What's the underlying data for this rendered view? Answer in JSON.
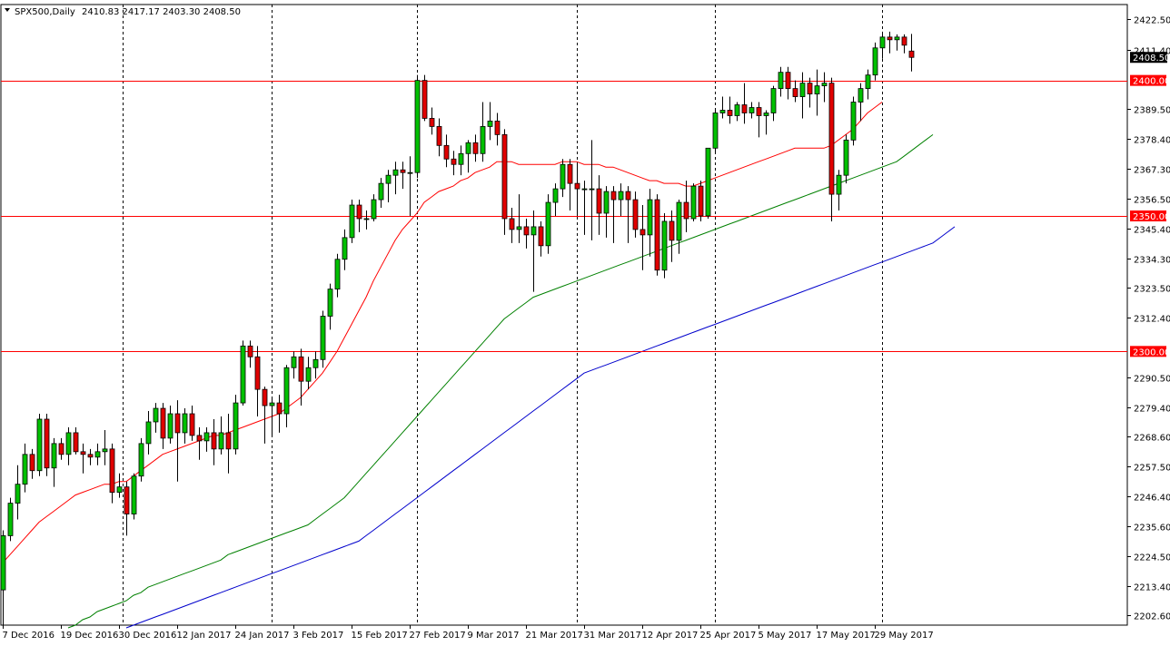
{
  "header": {
    "symbol": "SPX500,Daily",
    "ohlc": "2410.83 2417.17 2403.30 2408.50"
  },
  "colors": {
    "bull": "#00c000",
    "bear": "#e00000",
    "wick": "#000000",
    "level_line": "#ff0000",
    "ma_fast": "#ff0000",
    "ma_mid": "#008000",
    "ma_slow": "#0000cc",
    "price_tag_bg": "#000000"
  },
  "icons": {
    "symbol_marker": "triangle-down-icon"
  },
  "chart_data": {
    "type": "candlestick",
    "title": "SPX500,Daily",
    "ylim": [
      2199.0,
      2428.0
    ],
    "y_ticks": [
      {
        "value": 2422.5,
        "label": "2422.50"
      },
      {
        "value": 2411.4,
        "label": "2411.40"
      },
      {
        "value": 2389.5,
        "label": "2389.50"
      },
      {
        "value": 2378.4,
        "label": "2378.40"
      },
      {
        "value": 2367.3,
        "label": "2367.30"
      },
      {
        "value": 2356.5,
        "label": "2356.50"
      },
      {
        "value": 2345.4,
        "label": "2345.40"
      },
      {
        "value": 2334.3,
        "label": "2334.30"
      },
      {
        "value": 2323.5,
        "label": "2323.50"
      },
      {
        "value": 2312.4,
        "label": "2312.40"
      },
      {
        "value": 2290.5,
        "label": "2290.50"
      },
      {
        "value": 2279.4,
        "label": "2279.40"
      },
      {
        "value": 2268.6,
        "label": "2268.60"
      },
      {
        "value": 2257.5,
        "label": "2257.50"
      },
      {
        "value": 2246.4,
        "label": "2246.40"
      },
      {
        "value": 2235.6,
        "label": "2235.60"
      },
      {
        "value": 2224.5,
        "label": "2224.50"
      },
      {
        "value": 2213.4,
        "label": "2213.40"
      },
      {
        "value": 2202.6,
        "label": "2202.60"
      }
    ],
    "levels": [
      {
        "value": 2400.0,
        "label": "2400.00"
      },
      {
        "value": 2350.0,
        "label": "2350.00"
      },
      {
        "value": 2300.0,
        "label": "2300.00"
      }
    ],
    "current_price": {
      "value": 2408.5,
      "label": "2408.50"
    },
    "x_labels": [
      {
        "index": 0,
        "label": "7 Dec 2016"
      },
      {
        "index": 8,
        "label": "19 Dec 2016"
      },
      {
        "index": 16,
        "label": "30 Dec 2016"
      },
      {
        "index": 24,
        "label": "12 Jan 2017"
      },
      {
        "index": 32,
        "label": "24 Jan 2017"
      },
      {
        "index": 40,
        "label": "3 Feb 2017"
      },
      {
        "index": 48,
        "label": "15 Feb 2017"
      },
      {
        "index": 56,
        "label": "27 Feb 2017"
      },
      {
        "index": 64,
        "label": "9 Mar 2017"
      },
      {
        "index": 72,
        "label": "21 Mar 2017"
      },
      {
        "index": 80,
        "label": "31 Mar 2017"
      },
      {
        "index": 88,
        "label": "12 Apr 2017"
      },
      {
        "index": 96,
        "label": "25 Apr 2017"
      },
      {
        "index": 104,
        "label": "5 May 2017"
      },
      {
        "index": 112,
        "label": "17 May 2017"
      },
      {
        "index": 120,
        "label": "29 May 2017"
      }
    ],
    "separator_indices": [
      16.5,
      37,
      57,
      79,
      98,
      121
    ],
    "candles": [
      [
        2212,
        2234,
        2198,
        2232
      ],
      [
        2232,
        2246,
        2230,
        2244
      ],
      [
        2244,
        2258,
        2238,
        2251
      ],
      [
        2251,
        2266,
        2248,
        2262
      ],
      [
        2262,
        2264,
        2253,
        2256
      ],
      [
        2256,
        2277,
        2254,
        2275
      ],
      [
        2275,
        2277,
        2254,
        2257
      ],
      [
        2257,
        2268,
        2250,
        2266
      ],
      [
        2266,
        2268,
        2260,
        2262
      ],
      [
        2262,
        2272,
        2258,
        2270
      ],
      [
        2270,
        2272,
        2262,
        2263
      ],
      [
        2263,
        2266,
        2255,
        2262
      ],
      [
        2262,
        2264,
        2258,
        2261
      ],
      [
        2261,
        2266,
        2258,
        2263
      ],
      [
        2263,
        2271,
        2258,
        2264
      ],
      [
        2264,
        2266,
        2244,
        2248
      ],
      [
        2248,
        2255,
        2246,
        2250
      ],
      [
        2250,
        2252,
        2232,
        2240
      ],
      [
        2240,
        2255,
        2238,
        2254
      ],
      [
        2254,
        2268,
        2252,
        2266
      ],
      [
        2266,
        2278,
        2262,
        2274
      ],
      [
        2274,
        2281,
        2270,
        2279
      ],
      [
        2279,
        2281,
        2264,
        2268
      ],
      [
        2268,
        2280,
        2266,
        2277
      ],
      [
        2277,
        2282,
        2252,
        2270
      ],
      [
        2270,
        2279,
        2266,
        2277
      ],
      [
        2277,
        2280,
        2267,
        2269
      ],
      [
        2269,
        2272,
        2260,
        2267
      ],
      [
        2267,
        2272,
        2263,
        2270
      ],
      [
        2270,
        2275,
        2258,
        2264
      ],
      [
        2264,
        2276,
        2262,
        2270
      ],
      [
        2270,
        2277,
        2255,
        2264
      ],
      [
        2264,
        2284,
        2262,
        2281
      ],
      [
        2281,
        2304,
        2280,
        2302
      ],
      [
        2302,
        2304,
        2294,
        2298
      ],
      [
        2298,
        2302,
        2276,
        2286
      ],
      [
        2286,
        2287,
        2266,
        2280
      ],
      [
        2280,
        2283,
        2269,
        2281
      ],
      [
        2281,
        2284,
        2270,
        2277
      ],
      [
        2277,
        2295,
        2272,
        2294
      ],
      [
        2294,
        2300,
        2290,
        2298
      ],
      [
        2298,
        2301,
        2280,
        2289
      ],
      [
        2289,
        2298,
        2286,
        2294
      ],
      [
        2294,
        2300,
        2290,
        2297
      ],
      [
        2297,
        2315,
        2294,
        2313
      ],
      [
        2313,
        2325,
        2308,
        2323
      ],
      [
        2323,
        2336,
        2320,
        2334
      ],
      [
        2334,
        2345,
        2330,
        2342
      ],
      [
        2342,
        2356,
        2340,
        2354
      ],
      [
        2354,
        2356,
        2344,
        2349
      ],
      [
        2349,
        2352,
        2345,
        2349
      ],
      [
        2349,
        2358,
        2348,
        2356
      ],
      [
        2356,
        2364,
        2353,
        2362
      ],
      [
        2362,
        2367,
        2355,
        2365
      ],
      [
        2365,
        2370,
        2358,
        2367
      ],
      [
        2367,
        2370,
        2360,
        2366
      ],
      [
        2366,
        2372,
        2350,
        2366
      ],
      [
        2366,
        2402,
        2364,
        2400
      ],
      [
        2400,
        2402,
        2385,
        2386
      ],
      [
        2386,
        2390,
        2380,
        2383
      ],
      [
        2383,
        2386,
        2372,
        2376
      ],
      [
        2376,
        2380,
        2368,
        2371
      ],
      [
        2371,
        2374,
        2365,
        2369
      ],
      [
        2369,
        2376,
        2365,
        2373
      ],
      [
        2373,
        2378,
        2366,
        2377
      ],
      [
        2377,
        2380,
        2370,
        2373
      ],
      [
        2373,
        2392,
        2370,
        2383
      ],
      [
        2383,
        2392,
        2378,
        2385
      ],
      [
        2385,
        2388,
        2376,
        2380
      ],
      [
        2380,
        2382,
        2343,
        2349
      ],
      [
        2349,
        2353,
        2340,
        2345
      ],
      [
        2345,
        2358,
        2340,
        2346
      ],
      [
        2346,
        2349,
        2338,
        2343
      ],
      [
        2343,
        2352,
        2322,
        2346
      ],
      [
        2346,
        2348,
        2335,
        2339
      ],
      [
        2339,
        2358,
        2336,
        2355
      ],
      [
        2355,
        2362,
        2350,
        2360
      ],
      [
        2360,
        2371,
        2357,
        2369
      ],
      [
        2369,
        2371,
        2352,
        2362
      ],
      [
        2362,
        2369,
        2350,
        2360
      ],
      [
        2360,
        2363,
        2343,
        2360
      ],
      [
        2360,
        2378,
        2341,
        2360
      ],
      [
        2360,
        2365,
        2343,
        2351
      ],
      [
        2351,
        2361,
        2342,
        2359
      ],
      [
        2359,
        2361,
        2340,
        2356
      ],
      [
        2356,
        2362,
        2350,
        2359
      ],
      [
        2359,
        2361,
        2340,
        2356
      ],
      [
        2356,
        2359,
        2342,
        2345
      ],
      [
        2345,
        2354,
        2330,
        2343
      ],
      [
        2343,
        2360,
        2335,
        2356
      ],
      [
        2356,
        2358,
        2328,
        2330
      ],
      [
        2330,
        2351,
        2327,
        2348
      ],
      [
        2348,
        2352,
        2333,
        2341
      ],
      [
        2341,
        2356,
        2336,
        2355
      ],
      [
        2355,
        2363,
        2344,
        2349
      ],
      [
        2349,
        2362,
        2348,
        2361
      ],
      [
        2361,
        2363,
        2348,
        2350
      ],
      [
        2350,
        2375,
        2349,
        2375
      ],
      [
        2375,
        2389,
        2373,
        2388
      ],
      [
        2388,
        2394,
        2386,
        2389
      ],
      [
        2389,
        2394,
        2384,
        2387
      ],
      [
        2387,
        2392,
        2385,
        2391
      ],
      [
        2391,
        2399,
        2384,
        2388
      ],
      [
        2388,
        2392,
        2386,
        2390
      ],
      [
        2390,
        2392,
        2379,
        2387
      ],
      [
        2387,
        2389,
        2380,
        2388
      ],
      [
        2388,
        2398,
        2385,
        2397
      ],
      [
        2397,
        2405,
        2394,
        2403
      ],
      [
        2403,
        2405,
        2393,
        2397
      ],
      [
        2397,
        2400,
        2392,
        2394
      ],
      [
        2394,
        2403,
        2386,
        2399
      ],
      [
        2399,
        2401,
        2390,
        2395
      ],
      [
        2395,
        2404,
        2387,
        2398
      ],
      [
        2398,
        2403,
        2392,
        2399
      ],
      [
        2399,
        2401,
        2348,
        2358
      ],
      [
        2358,
        2367,
        2352,
        2365
      ],
      [
        2365,
        2380,
        2362,
        2378
      ],
      [
        2378,
        2394,
        2376,
        2392
      ],
      [
        2392,
        2399,
        2385,
        2397
      ],
      [
        2397,
        2404,
        2393,
        2402
      ],
      [
        2402,
        2414,
        2400,
        2412
      ],
      [
        2412,
        2418,
        2408,
        2416
      ],
      [
        2416,
        2418,
        2410,
        2415
      ],
      [
        2415,
        2417,
        2411,
        2416
      ],
      [
        2416,
        2417,
        2410,
        2413
      ],
      [
        2410.83,
        2417.17,
        2403.3,
        2408.5
      ]
    ],
    "series": [
      {
        "type": "ma",
        "color": "#ff0000",
        "start_index": 0,
        "values": [
          2222,
          2225,
          2228,
          2231,
          2234,
          2237,
          2239,
          2241,
          2243,
          2245,
          2247,
          2248,
          2249,
          2250,
          2251,
          2251,
          2252,
          2252,
          2254,
          2256,
          2258,
          2260,
          2262,
          2263,
          2264,
          2265,
          2266,
          2267,
          2268,
          2269,
          2269,
          2270,
          2271,
          2272,
          2273,
          2274,
          2275,
          2276,
          2277,
          2279,
          2281,
          2283,
          2286,
          2289,
          2292,
          2296,
          2300,
          2305,
          2310,
          2315,
          2320,
          2326,
          2331,
          2336,
          2341,
          2345,
          2348,
          2351,
          2355,
          2357,
          2359,
          2360,
          2361,
          2363,
          2364,
          2366,
          2367,
          2368,
          2370,
          2370,
          2370,
          2369,
          2369,
          2369,
          2369,
          2369,
          2369,
          2370,
          2370,
          2370,
          2369,
          2369,
          2369,
          2368,
          2368,
          2367,
          2366,
          2365,
          2364,
          2363,
          2363,
          2362,
          2362,
          2362,
          2361,
          2361,
          2362,
          2363,
          2364,
          2365,
          2366,
          2367,
          2368,
          2369,
          2370,
          2371,
          2372,
          2373,
          2374,
          2375,
          2375,
          2375,
          2375,
          2375,
          2376,
          2378,
          2380,
          2382,
          2385,
          2388,
          2390,
          2392
        ]
      },
      {
        "type": "ma",
        "color": "#008000",
        "start_index": 9,
        "values": [
          2198,
          2199,
          2201,
          2202,
          2204,
          2205,
          2206,
          2207,
          2208,
          2210,
          2211,
          2213,
          2214,
          2215,
          2216,
          2217,
          2218,
          2219,
          2220,
          2221,
          2222,
          2223,
          2225,
          2226,
          2227,
          2228,
          2229,
          2230,
          2231,
          2232,
          2233,
          2234,
          2235,
          2236,
          2238,
          2240,
          2242,
          2244,
          2246,
          2249,
          2252,
          2255,
          2258,
          2261,
          2264,
          2267,
          2270,
          2273,
          2276,
          2279,
          2282,
          2285,
          2288,
          2291,
          2294,
          2297,
          2300,
          2303,
          2306,
          2309,
          2312,
          2314,
          2316,
          2318,
          2320,
          2321,
          2322,
          2323,
          2324,
          2325,
          2326,
          2327,
          2328,
          2329,
          2330,
          2331,
          2332,
          2333,
          2334,
          2335,
          2336,
          2337,
          2338,
          2339,
          2340,
          2341,
          2342,
          2343,
          2344,
          2345,
          2346,
          2347,
          2348,
          2349,
          2350,
          2351,
          2352,
          2353,
          2354,
          2355,
          2356,
          2357,
          2358,
          2359,
          2360,
          2361,
          2362,
          2363,
          2364,
          2365,
          2366,
          2367,
          2368,
          2369,
          2370,
          2372,
          2374,
          2376,
          2378,
          2380
        ]
      },
      {
        "type": "ma",
        "color": "#0000cc",
        "start_index": 17,
        "values": [
          2198,
          2199,
          2200,
          2201,
          2202,
          2203,
          2204,
          2205,
          2206,
          2207,
          2208,
          2209,
          2210,
          2211,
          2212,
          2213,
          2214,
          2215,
          2216,
          2217,
          2218,
          2219,
          2220,
          2221,
          2222,
          2223,
          2224,
          2225,
          2226,
          2227,
          2228,
          2229,
          2230,
          2232,
          2234,
          2236,
          2238,
          2240,
          2242,
          2244,
          2246,
          2248,
          2250,
          2252,
          2254,
          2256,
          2258,
          2260,
          2262,
          2264,
          2266,
          2268,
          2270,
          2272,
          2274,
          2276,
          2278,
          2280,
          2282,
          2284,
          2286,
          2288,
          2290,
          2292,
          2293,
          2294,
          2295,
          2296,
          2297,
          2298,
          2299,
          2300,
          2301,
          2302,
          2303,
          2304,
          2305,
          2306,
          2307,
          2308,
          2309,
          2310,
          2311,
          2312,
          2313,
          2314,
          2315,
          2316,
          2317,
          2318,
          2319,
          2320,
          2321,
          2322,
          2323,
          2324,
          2325,
          2326,
          2327,
          2328,
          2329,
          2330,
          2331,
          2332,
          2333,
          2334,
          2335,
          2336,
          2337,
          2338,
          2339,
          2340,
          2342,
          2344,
          2346
        ]
      }
    ]
  }
}
